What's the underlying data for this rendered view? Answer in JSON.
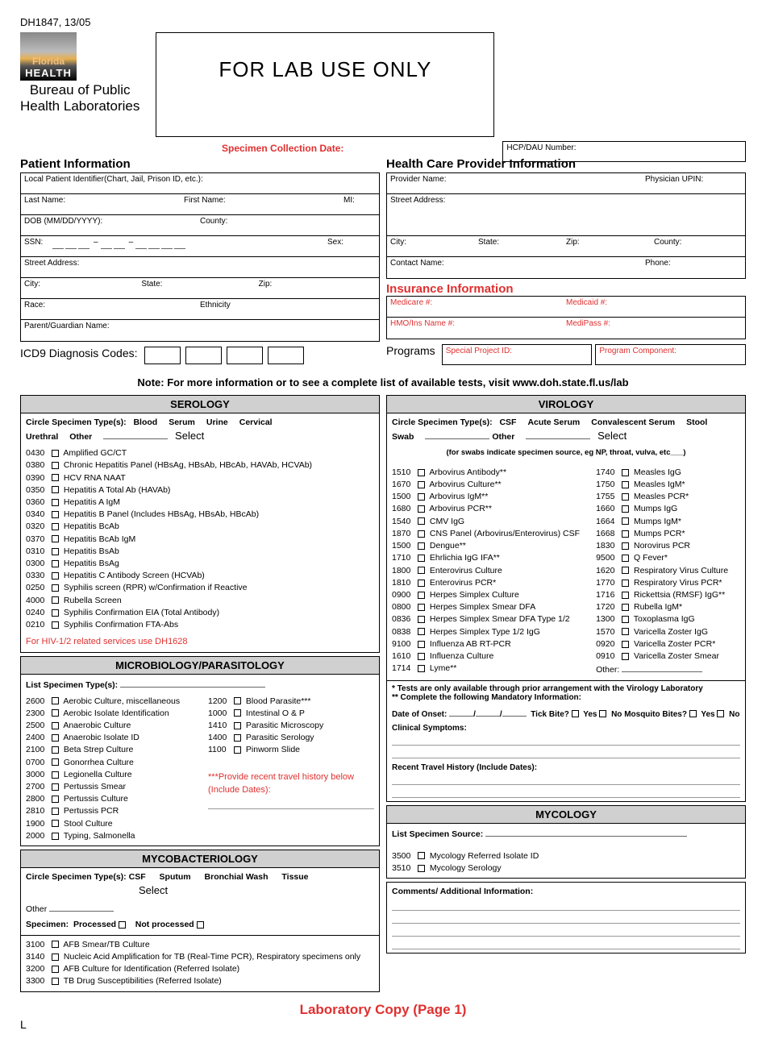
{
  "form_id": "DH1847, 13/05",
  "logo": {
    "florida": "Florida",
    "health": "HEALTH"
  },
  "bureau_line1": "Bureau of Public",
  "bureau_line2": "Health Laboratories",
  "lab_use": "FOR LAB USE ONLY",
  "specimen_date_label": "Specimen Collection Date:",
  "hcp_number_label": "HCP/DAU Number:",
  "patient": {
    "title": "Patient Information",
    "local_id": "Local Patient Identifier(Chart, Jail, Prison ID, etc.):",
    "last": "Last Name:",
    "first": "First Name:",
    "mi": "MI:",
    "dob": "DOB (MM/DD/YYYY):",
    "county": "County:",
    "ssn": "SSN:",
    "sex": "Sex:",
    "street": "Street Address:",
    "city": "City:",
    "state": "State:",
    "zip": "Zip:",
    "race": "Race:",
    "ethnicity": "Ethnicity",
    "parent": "Parent/Guardian Name:"
  },
  "provider": {
    "title": "Health Care Provider Information",
    "name": "Provider Name:",
    "upin": "Physician UPIN:",
    "street": "Street Address:",
    "city": "City:",
    "state": "State:",
    "zip": "Zip:",
    "county": "County:",
    "contact": "Contact Name:",
    "phone": "Phone:"
  },
  "insurance": {
    "title": "Insurance Information",
    "medicare": "Medicare #:",
    "medicaid": "Medicaid #:",
    "hmo": "HMO/Ins Name #:",
    "medipass": "MediPass #:"
  },
  "icd9_label": "ICD9 Diagnosis Codes:",
  "programs_label": "Programs",
  "special_project": "Special Project ID:",
  "program_component": "Program Component:",
  "note": "Note: For more information or to see a complete list of available tests, visit www.doh.state.fl.us/lab",
  "serology": {
    "title": "SEROLOGY",
    "spec_label": "Circle Specimen Type(s):",
    "types": [
      "Blood",
      "Serum",
      "Urine",
      "Cervical",
      "Urethral",
      "Other"
    ],
    "select": "Select",
    "tests": [
      {
        "c": "0430",
        "n": "Amplified GC/CT"
      },
      {
        "c": "0380",
        "n": "Chronic Hepatitis Panel (HBsAg, HBsAb, HBcAb, HAVAb, HCVAb)"
      },
      {
        "c": "0390",
        "n": "HCV RNA NAAT"
      },
      {
        "c": "0350",
        "n": "Hepatitis A Total Ab (HAVAb)"
      },
      {
        "c": "0360",
        "n": "Hepatitis A IgM"
      },
      {
        "c": "0340",
        "n": "Hepatitis B Panel (Includes HBsAg, HBsAb, HBcAb)"
      },
      {
        "c": "0320",
        "n": "Hepatitis BcAb"
      },
      {
        "c": "0370",
        "n": "Hepatitis BcAb IgM"
      },
      {
        "c": "0310",
        "n": "Hepatitis BsAb"
      },
      {
        "c": "0300",
        "n": "Hepatitis BsAg"
      },
      {
        "c": "0330",
        "n": "Hepatitis C Antibody Screen (HCVAb)"
      },
      {
        "c": "0250",
        "n": "Syphilis screen (RPR) w/Confirmation if Reactive"
      },
      {
        "c": "4000",
        "n": "Rubella Screen"
      },
      {
        "c": "0240",
        "n": "Syphilis Confirmation EIA (Total Antibody)"
      },
      {
        "c": "0210",
        "n": "Syphilis Confirmation FTA-Abs"
      }
    ],
    "hiv_note": "For HIV-1/2 related services use DH1628"
  },
  "micro": {
    "title": "MICROBIOLOGY/PARASITOLOGY",
    "list_label": "List Specimen Type(s):",
    "col1": [
      {
        "c": "2600",
        "n": "Aerobic Culture, miscellaneous"
      },
      {
        "c": "2300",
        "n": "Aerobic Isolate Identification"
      },
      {
        "c": "2500",
        "n": "Anaerobic Culture"
      },
      {
        "c": "2400",
        "n": "Anaerobic Isolate ID"
      },
      {
        "c": "2100",
        "n": "Beta Strep Culture"
      },
      {
        "c": "0700",
        "n": "Gonorrhea Culture"
      },
      {
        "c": "3000",
        "n": "Legionella Culture"
      },
      {
        "c": "2700",
        "n": "Pertussis Smear"
      },
      {
        "c": "2800",
        "n": "Pertussis Culture"
      },
      {
        "c": "2810",
        "n": "Pertussis PCR"
      },
      {
        "c": "1900",
        "n": "Stool Culture"
      },
      {
        "c": "2000",
        "n": "Typing, Salmonella"
      }
    ],
    "col2": [
      {
        "c": "1200",
        "n": "Blood Parasite***"
      },
      {
        "c": "1000",
        "n": "Intestinal O & P"
      },
      {
        "c": "1410",
        "n": "Parasitic Microscopy"
      },
      {
        "c": "1400",
        "n": "Parasitic Serology"
      },
      {
        "c": "1100",
        "n": "Pinworm Slide"
      }
    ],
    "travel_note": "***Provide recent travel history below (Include Dates):"
  },
  "mycobact": {
    "title": "MYCOBACTERIOLOGY",
    "spec_label": "Circle Specimen Type(s):",
    "types": [
      "CSF",
      "Sputum",
      "Bronchial Wash",
      "Tissue"
    ],
    "select": "Select",
    "other": "Other",
    "specimen": "Specimen:",
    "processed": "Processed",
    "not_processed": "Not processed",
    "tests": [
      {
        "c": "3100",
        "n": "AFB Smear/TB Culture"
      },
      {
        "c": "3140",
        "n": "Nucleic Acid Amplification for TB (Real-Time PCR), Respiratory specimens only"
      },
      {
        "c": "3200",
        "n": "AFB Culture for Identification (Referred Isolate)"
      },
      {
        "c": "3300",
        "n": "TB Drug Susceptibilities (Referred Isolate)"
      }
    ]
  },
  "virology": {
    "title": "VIROLOGY",
    "spec_label": "Circle Specimen Type(s):",
    "types": [
      "CSF",
      "Acute Serum",
      "Convalescent Serum",
      "Stool",
      "Swab",
      "Other"
    ],
    "select": "Select",
    "swab_note": "(for swabs indicate specimen source, eg NP, throat, vulva, etc___)",
    "col1": [
      {
        "c": "1510",
        "n": "Arbovirus Antibody**"
      },
      {
        "c": "1670",
        "n": "Arbovirus Culture**"
      },
      {
        "c": "1500",
        "n": "Arbovirus IgM**"
      },
      {
        "c": "1680",
        "n": "Arbovirus PCR**"
      },
      {
        "c": "1540",
        "n": "CMV IgG"
      },
      {
        "c": "1870",
        "n": "CNS Panel (Arbovirus/Enterovirus) CSF"
      },
      {
        "c": "1500",
        "n": "Dengue**"
      },
      {
        "c": "1710",
        "n": "Ehrlichia IgG IFA**"
      },
      {
        "c": "1800",
        "n": "Enterovirus Culture"
      },
      {
        "c": "1810",
        "n": "Enterovirus PCR*"
      },
      {
        "c": "0900",
        "n": "Herpes Simplex Culture"
      },
      {
        "c": "0800",
        "n": "Herpes Simplex Smear DFA"
      },
      {
        "c": "0836",
        "n": "Herpes Simplex Smear DFA Type 1/2"
      },
      {
        "c": "0838",
        "n": "Herpes Simplex Type 1/2 IgG"
      },
      {
        "c": "9100",
        "n": "Influenza AB RT-PCR"
      },
      {
        "c": "1610",
        "n": "Influenza Culture"
      },
      {
        "c": "1714",
        "n": "Lyme**"
      }
    ],
    "col2": [
      {
        "c": "1740",
        "n": "Measles IgG"
      },
      {
        "c": "1750",
        "n": "Measles IgM*"
      },
      {
        "c": "1755",
        "n": "Measles PCR*"
      },
      {
        "c": "1660",
        "n": "Mumps IgG"
      },
      {
        "c": "1664",
        "n": "Mumps IgM*"
      },
      {
        "c": "1668",
        "n": "Mumps PCR*"
      },
      {
        "c": "1830",
        "n": "Norovirus PCR"
      },
      {
        "c": "9500",
        "n": "Q Fever*"
      },
      {
        "c": "1620",
        "n": "Respiratory Virus Culture"
      },
      {
        "c": "1770",
        "n": "Respiratory Virus PCR*"
      },
      {
        "c": "1716",
        "n": "Rickettsia (RMSF) IgG**"
      },
      {
        "c": "1720",
        "n": "Rubella IgM*"
      },
      {
        "c": "1300",
        "n": "Toxoplasma IgG"
      },
      {
        "c": "1570",
        "n": "Varicella Zoster IgG"
      },
      {
        "c": "0920",
        "n": "Varicella Zoster PCR*"
      },
      {
        "c": "0910",
        "n": "Varicella Zoster Smear"
      }
    ],
    "other_label": "Other:",
    "star1": "* Tests are only available through prior arrangement with the Virology Laboratory",
    "star2": "** Complete the following Mandatory Information:",
    "onset": "Date of Onset:",
    "tick": "Tick Bite?",
    "mosquito": "Mosquito Bites?",
    "yes": "Yes",
    "no": "No",
    "symptoms": "Clinical Symptoms:",
    "travel": "Recent Travel History (Include Dates):"
  },
  "mycology": {
    "title": "MYCOLOGY",
    "source": "List Specimen Source:",
    "tests": [
      {
        "c": "3500",
        "n": "Mycology Referred Isolate ID"
      },
      {
        "c": "3510",
        "n": "Mycology Serology"
      }
    ]
  },
  "comments": "Comments/ Additional Information:",
  "footer": "Laboratory Copy (Page 1)",
  "L": "L"
}
